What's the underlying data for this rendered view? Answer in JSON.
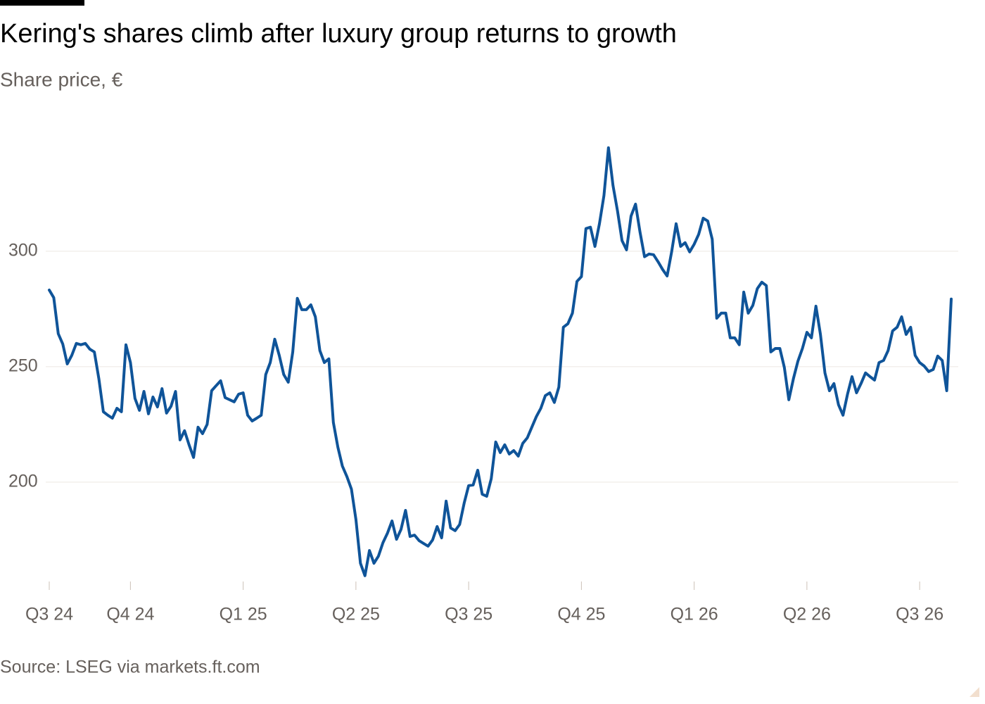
{
  "chart_data": {
    "type": "line",
    "title": "Kering's shares climb after luxury group returns to growth",
    "subtitle": "Share price, €",
    "source": "Source: LSEG via markets.ft.com",
    "categories": [
      "Q3 24",
      null,
      null,
      null,
      null,
      null,
      null,
      null,
      null,
      null,
      null,
      null,
      null,
      null,
      null,
      null,
      null,
      null,
      "Q4 24",
      null,
      null,
      null,
      null,
      null,
      null,
      null,
      null,
      null,
      null,
      null,
      null,
      null,
      null,
      null,
      null,
      null,
      null,
      null,
      null,
      null,
      null,
      null,
      null,
      "Q1 25",
      null,
      null,
      null,
      null,
      null,
      null,
      null,
      null,
      null,
      null,
      null,
      null,
      null,
      null,
      null,
      null,
      null,
      null,
      null,
      null,
      null,
      null,
      null,
      null,
      "Q2 25",
      null,
      null,
      null,
      null,
      null,
      null,
      null,
      null,
      null,
      null,
      null,
      null,
      null,
      null,
      null,
      null,
      null,
      null,
      null,
      null,
      null,
      null,
      null,
      null,
      "Q3 25",
      null,
      null,
      null,
      null,
      null,
      null,
      null,
      null,
      null,
      null,
      null,
      null,
      null,
      null,
      null,
      null,
      null,
      null,
      null,
      null,
      null,
      null,
      null,
      null,
      "Q4 25",
      null,
      null,
      null,
      null,
      null,
      null,
      null,
      null,
      null,
      null,
      null,
      null,
      null,
      null,
      null,
      null,
      null,
      null,
      null,
      null,
      null,
      null,
      null,
      null,
      "Q1 26",
      null,
      null,
      null,
      null,
      null,
      null,
      null,
      null,
      null,
      null,
      null,
      null,
      null,
      null,
      null,
      null,
      null,
      null,
      null,
      null,
      null,
      null,
      null,
      null,
      "Q2 26",
      null,
      null,
      null,
      null,
      null,
      null,
      null,
      null,
      null,
      null,
      null,
      null,
      null,
      null,
      null,
      null,
      null,
      null,
      null,
      null,
      null,
      null,
      null,
      null,
      "Q3 26",
      null,
      null,
      null,
      null,
      null,
      null,
      null
    ],
    "series": [
      {
        "name": "Kering",
        "color": "#0f5499",
        "values": [
          283.2,
          279.9,
          264.3,
          259.8,
          251.2,
          254.9,
          260.1,
          259.5,
          260.1,
          257.6,
          256.4,
          244.8,
          230.5,
          229.0,
          227.7,
          232.0,
          230.5,
          259.5,
          251.8,
          236.3,
          231.1,
          239.3,
          229.6,
          236.9,
          232.6,
          240.5,
          229.9,
          232.9,
          239.3,
          218.3,
          222.3,
          216.2,
          210.7,
          223.8,
          221.0,
          225.0,
          239.6,
          241.8,
          243.9,
          236.6,
          235.7,
          234.8,
          238.1,
          238.7,
          229.0,
          226.5,
          227.7,
          229.0,
          246.6,
          251.8,
          261.9,
          254.9,
          246.6,
          243.3,
          256.4,
          279.6,
          274.7,
          274.7,
          276.8,
          271.6,
          257.0,
          251.8,
          253.4,
          225.9,
          215.2,
          207.0,
          202.4,
          197.0,
          183.8,
          164.9,
          159.5,
          170.4,
          164.9,
          168.0,
          173.8,
          178.0,
          183.2,
          175.3,
          179.6,
          187.8,
          176.5,
          177.1,
          174.7,
          173.5,
          172.3,
          175.0,
          180.8,
          175.9,
          191.8,
          180.2,
          179.0,
          181.7,
          190.9,
          198.5,
          198.8,
          205.2,
          194.8,
          193.9,
          201.5,
          217.4,
          212.8,
          216.2,
          212.2,
          213.7,
          211.3,
          216.8,
          219.2,
          223.8,
          228.4,
          232.0,
          237.5,
          238.7,
          234.5,
          241.2,
          267.1,
          268.6,
          273.2,
          286.9,
          289.0,
          309.8,
          310.4,
          302.1,
          311.9,
          324.1,
          344.8,
          328.4,
          317.4,
          304.6,
          300.6,
          315.2,
          320.4,
          308.2,
          297.6,
          298.8,
          298.5,
          295.4,
          292.1,
          289.3,
          299.7,
          311.9,
          302.1,
          303.7,
          299.7,
          303.0,
          307.3,
          314.3,
          313.1,
          305.2,
          271.0,
          273.2,
          273.2,
          262.5,
          262.5,
          259.5,
          282.3,
          273.2,
          276.5,
          283.8,
          286.6,
          285.1,
          256.4,
          257.9,
          257.9,
          249.7,
          235.7,
          244.8,
          252.4,
          257.9,
          264.9,
          262.5,
          276.2,
          264.0,
          247.3,
          239.6,
          242.7,
          233.5,
          229.0,
          238.1,
          245.7,
          238.7,
          242.7,
          247.3,
          245.7,
          244.2,
          251.8,
          252.7,
          257.0,
          265.5,
          267.1,
          271.6,
          264.0,
          267.1,
          254.9,
          251.8,
          250.3,
          247.9,
          248.8,
          254.6,
          252.7,
          239.6,
          279.3
        ]
      }
    ],
    "ylim": [
      157,
      360
    ],
    "yticks": [
      200,
      250,
      300
    ],
    "grid": true
  }
}
